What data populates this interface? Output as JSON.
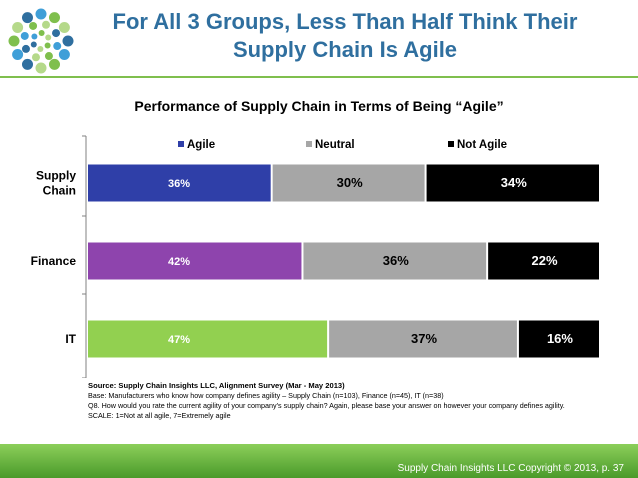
{
  "slide": {
    "title_line1": "For All 3 Groups, Less Than Half Think Their",
    "title_line2": "Supply Chain Is Agile",
    "copyright": "Supply Chain Insights LLC Copyright © 2013, p. 37"
  },
  "logo": {
    "icon": "dot-circle-logo-icon",
    "colors": [
      "#2f6f9f",
      "#3f9fd8",
      "#7fbf4d",
      "#b5d98a"
    ]
  },
  "chart_data": {
    "type": "bar",
    "orientation": "horizontal",
    "stacked": "100%",
    "title": "Performance of Supply Chain in Terms of Being “Agile”",
    "categories": [
      {
        "label": "Supply Chain",
        "lines": [
          "Supply",
          "Chain"
        ]
      },
      {
        "label": "Finance",
        "lines": [
          "Finance"
        ]
      },
      {
        "label": "IT",
        "lines": [
          "IT"
        ]
      }
    ],
    "category_agile_colors": [
      "#2f3fa8",
      "#8e44ad",
      "#92d050"
    ],
    "series": [
      {
        "name": "Agile",
        "values": [
          36,
          42,
          47
        ],
        "labels": [
          "36%",
          "42%",
          "47%"
        ]
      },
      {
        "name": "Neutral",
        "color": "#a6a6a6",
        "values": [
          30,
          36,
          37
        ],
        "labels": [
          "30%",
          "36%",
          "37%"
        ]
      },
      {
        "name": "Not Agile",
        "color": "#000000",
        "values": [
          34,
          22,
          16
        ],
        "labels": [
          "34%",
          "22%",
          "16%"
        ]
      }
    ],
    "legend": {
      "position": "top",
      "items": [
        {
          "label": "Agile",
          "color": "#2f3fa8"
        },
        {
          "label": "Neutral",
          "color": "#a6a6a6"
        },
        {
          "label": "Not Agile",
          "color": "#000000"
        }
      ]
    },
    "xlim": [
      0,
      100
    ],
    "grid": false
  },
  "notes": {
    "source": "Source:  Supply Chain Insights LLC, Alignment Survey  (Mar - May 2013)",
    "base": "Base:  Manufacturers who know how company defines agility – Supply Chain (n=103), Finance (n=45), IT (n=38)",
    "question": "Q8. How would you rate the current agility of your company’s supply chain? Again, please base your answer on however your company defines agility.",
    "scale": "SCALE: 1=Not at all agile, 7=Extremely agile"
  }
}
